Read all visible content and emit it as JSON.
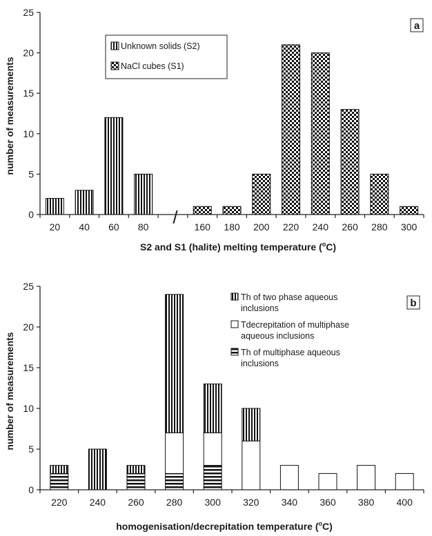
{
  "chart_data": [
    {
      "type": "bar",
      "panel_label": "a",
      "xlabel": "S2 and S1 (halite) melting temperature (",
      "xlabel_unit": "o",
      "xlabel_tail": "C)",
      "ylabel": "number of measurements",
      "ylim": [
        0,
        25
      ],
      "yticks": [
        0,
        5,
        10,
        15,
        20,
        25
      ],
      "axis_break_symbol": "/",
      "categories": [
        "20",
        "40",
        "60",
        "80",
        "",
        "160",
        "180",
        "200",
        "220",
        "240",
        "260",
        "280",
        "300"
      ],
      "series": [
        {
          "name": "Unknown solids (S2)",
          "pattern": "vertical-stripes",
          "values": [
            2,
            3,
            12,
            5,
            null,
            null,
            null,
            null,
            null,
            null,
            null,
            null,
            null
          ]
        },
        {
          "name": "NaCl cubes (S1)",
          "pattern": "checker",
          "values": [
            null,
            null,
            null,
            null,
            null,
            1,
            1,
            5,
            21,
            20,
            13,
            5,
            1
          ]
        }
      ],
      "legend_position": "top-left"
    },
    {
      "type": "bar",
      "stacked": true,
      "panel_label": "b",
      "xlabel": "homogenisation/decrepitation temperature (",
      "xlabel_unit": "o",
      "xlabel_tail": "C)",
      "ylabel": "number of measurements",
      "ylim": [
        0,
        25
      ],
      "yticks": [
        0,
        5,
        10,
        15,
        20,
        25
      ],
      "categories": [
        "220",
        "240",
        "260",
        "280",
        "300",
        "320",
        "340",
        "360",
        "380",
        "400"
      ],
      "series": [
        {
          "name": "Th of multiphase aqueous inclusions",
          "pattern": "horizontal-stripes",
          "values": [
            2,
            0,
            2,
            2,
            3,
            0,
            0,
            0,
            0,
            0
          ]
        },
        {
          "name": "Tdecrepitation of multiphase aqueous inclusions",
          "pattern": "white",
          "values": [
            0,
            0,
            0,
            5,
            4,
            6,
            3,
            2,
            3,
            2
          ]
        },
        {
          "name": "Th of two phase aqueous inclusions",
          "pattern": "vertical-stripes",
          "values": [
            1,
            5,
            1,
            17,
            6,
            4,
            0,
            0,
            0,
            0
          ]
        }
      ],
      "legend_entries": [
        {
          "name_lines": [
            "Th of two phase aqueous",
            "inclusions"
          ],
          "pattern": "vertical-stripes"
        },
        {
          "name_lines": [
            "Tdecrepitation of multiphase",
            "aqueous inclusions"
          ],
          "pattern": "white"
        },
        {
          "name_lines": [
            "Th of multiphase aqueous",
            "inclusions"
          ],
          "pattern": "horizontal-stripes"
        }
      ],
      "legend_position": "top-right"
    }
  ]
}
